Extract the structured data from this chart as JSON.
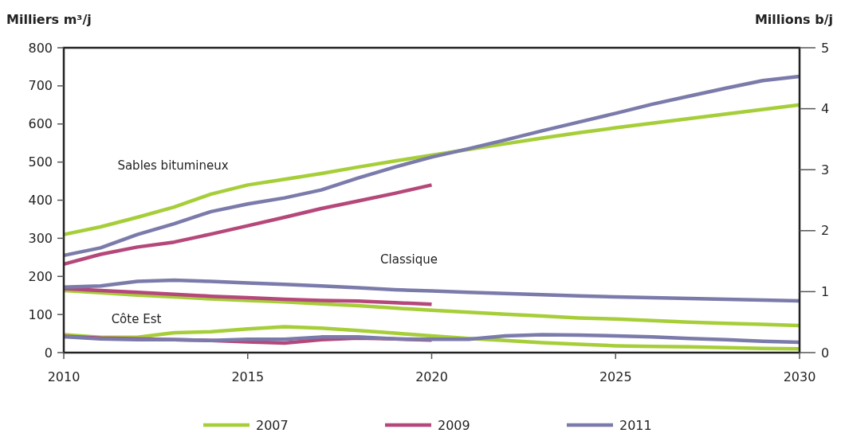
{
  "chart_data": {
    "type": "line",
    "ylabel": "Milliers m³/j",
    "y2label": "Millions b/j",
    "x": [
      2010,
      2011,
      2012,
      2013,
      2014,
      2015,
      2016,
      2017,
      2018,
      2019,
      2020,
      2021,
      2022,
      2023,
      2024,
      2025,
      2026,
      2027,
      2028,
      2029,
      2030
    ],
    "xlim": [
      2010,
      2030
    ],
    "xticks": [
      2010,
      2015,
      2020,
      2025,
      2030
    ],
    "ylim": [
      0,
      800
    ],
    "yticks": [
      0,
      100,
      200,
      300,
      400,
      500,
      600,
      700,
      800
    ],
    "y2lim": [
      0,
      5
    ],
    "y2ticks": [
      0,
      1,
      2,
      3,
      4,
      5
    ],
    "legend": "bottom",
    "grid": false,
    "line_style": "solid",
    "marker": "none",
    "series": [
      {
        "name": "2007",
        "color": "#a6ce39",
        "values": [
          310,
          330,
          355,
          382,
          416,
          440,
          455,
          470,
          487,
          503,
          518,
          533,
          548,
          563,
          577,
          590,
          602,
          614,
          626,
          638,
          650
        ]
      },
      {
        "name": "2009",
        "color": "#b5487a",
        "values": [
          232,
          258,
          277,
          290,
          311,
          333,
          355,
          378,
          398,
          418,
          440,
          null,
          null,
          null,
          null,
          null,
          null,
          null,
          null,
          null,
          null
        ]
      },
      {
        "name": "2011",
        "color": "#7b7bab",
        "values": [
          255,
          275,
          310,
          338,
          370,
          390,
          406,
          427,
          458,
          487,
          513,
          535,
          558,
          582,
          605,
          628,
          652,
          673,
          694,
          714,
          725
        ]
      },
      {
        "color": "#a6ce39",
        "values": [
          163,
          157,
          151,
          146,
          141,
          137,
          133,
          128,
          123,
          117,
          111,
          106,
          101,
          96,
          91,
          88,
          84,
          80,
          77,
          74,
          71
        ]
      },
      {
        "color": "#b5487a",
        "values": [
          168,
          163,
          158,
          153,
          148,
          144,
          140,
          137,
          135,
          131,
          127,
          null,
          null,
          null,
          null,
          null,
          null,
          null,
          null,
          null,
          null
        ]
      },
      {
        "color": "#7b7bab",
        "values": [
          172,
          175,
          187,
          190,
          187,
          183,
          179,
          175,
          170,
          165,
          162,
          158,
          155,
          152,
          149,
          146,
          144,
          142,
          140,
          138,
          136
        ]
      },
      {
        "color": "#a6ce39",
        "values": [
          47,
          40,
          40,
          52,
          55,
          62,
          68,
          64,
          58,
          51,
          44,
          37,
          32,
          26,
          22,
          18,
          16,
          15,
          13,
          11,
          10
        ]
      },
      {
        "color": "#b5487a",
        "values": [
          43,
          38,
          36,
          34,
          32,
          28,
          25,
          34,
          38,
          36,
          33,
          null,
          null,
          null,
          null,
          null,
          null,
          null,
          null,
          null,
          null
        ]
      },
      {
        "color": "#7b7bab",
        "values": [
          42,
          36,
          34,
          34,
          32,
          35,
          35,
          41,
          41,
          36,
          35,
          35,
          44,
          47,
          46,
          44,
          41,
          37,
          34,
          30,
          27
        ]
      }
    ],
    "annotations": [
      "Sables bitumineux",
      "Classique",
      "Côte Est"
    ]
  }
}
